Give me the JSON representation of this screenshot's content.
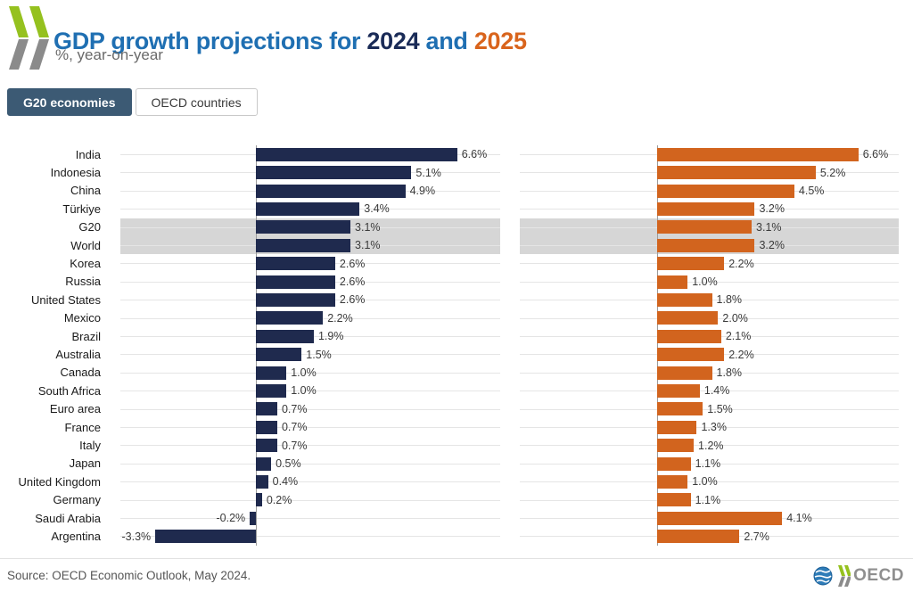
{
  "header": {
    "title_prefix": "GDP growth projections for",
    "title_year1": "2024",
    "title_and": "and",
    "title_year2": "2025",
    "subtitle": "%, year-on-year"
  },
  "tabs": [
    {
      "label": "G20 economies",
      "selected": true
    },
    {
      "label": "OECD countries",
      "selected": false
    }
  ],
  "chart_data": {
    "type": "bar",
    "orientation": "horizontal",
    "value_suffix": "%",
    "grid": true,
    "categories": [
      "India",
      "Indonesia",
      "China",
      "Türkiye",
      "G20",
      "World",
      "Korea",
      "Russia",
      "United States",
      "Mexico",
      "Brazil",
      "Australia",
      "Canada",
      "South Africa",
      "Euro area",
      "France",
      "Italy",
      "Japan",
      "United Kingdom",
      "Germany",
      "Saudi Arabia",
      "Argentina"
    ],
    "series": [
      {
        "name": "2024",
        "color": "#1f2a4e",
        "values": [
          6.6,
          5.1,
          4.9,
          3.4,
          3.1,
          3.1,
          2.6,
          2.6,
          2.6,
          2.2,
          1.9,
          1.5,
          1.0,
          1.0,
          0.7,
          0.7,
          0.7,
          0.5,
          0.4,
          0.2,
          -0.2,
          -3.3
        ]
      },
      {
        "name": "2025",
        "color": "#d2641e",
        "values": [
          6.6,
          5.2,
          4.5,
          3.2,
          3.1,
          3.2,
          2.2,
          1.0,
          1.8,
          2.0,
          2.1,
          2.2,
          1.8,
          1.4,
          1.5,
          1.3,
          1.2,
          1.1,
          1.0,
          1.1,
          4.1,
          2.7
        ]
      }
    ],
    "highlighted_categories": [
      "G20",
      "World"
    ],
    "highlight_color": "#d6d6d6",
    "xlim": [
      -5,
      8
    ]
  },
  "footer": {
    "source": "Source: OECD Economic Outlook, May 2024.",
    "logo_text": "OECD"
  },
  "colors": {
    "navy": "#1f2a4e",
    "orange": "#d2641e",
    "title_blue": "#1f6fb2",
    "tab_selected_bg": "#3c5a74",
    "logo_green": "#95c11f",
    "logo_gray": "#8b8b8b"
  }
}
